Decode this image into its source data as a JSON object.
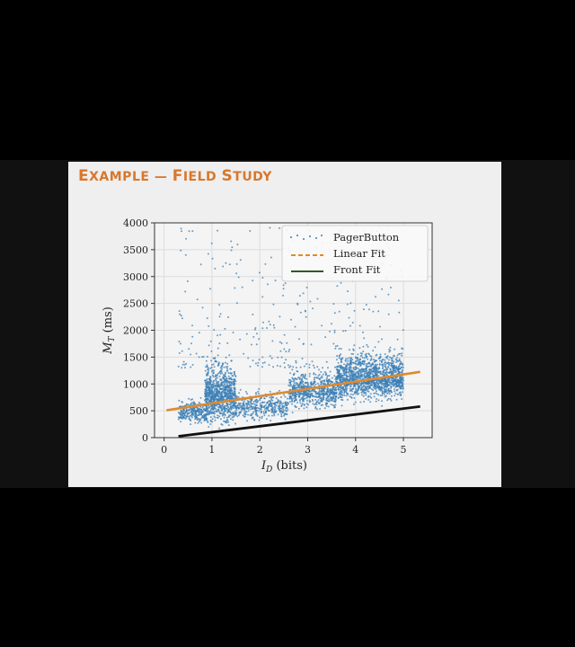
{
  "slide": {
    "title": "Example — Field Study"
  },
  "colors": {
    "accent": "#d9772b",
    "scatter": "#3b7fb5",
    "linear_fit": "#e08a2c",
    "front_fit": "#111111"
  },
  "chart_data": {
    "type": "scatter",
    "title": "",
    "xlabel": "I_D (bits)",
    "ylabel": "M_T (ms)",
    "xlim": [
      -0.2,
      5.6
    ],
    "ylim": [
      0,
      4000
    ],
    "x_ticks": [
      "0",
      "1",
      "2",
      "3",
      "4",
      "5"
    ],
    "y_ticks": [
      "0",
      "500",
      "1000",
      "1500",
      "2000",
      "2500",
      "3000",
      "3500",
      "4000"
    ],
    "grid": true,
    "legend": "top-right",
    "series": [
      {
        "name": "PagerButton",
        "kind": "scatter",
        "clusters": [
          {
            "x_range": [
              0.3,
              0.9
            ],
            "y_center": 420,
            "y_spread": 220,
            "count": 260
          },
          {
            "x_range": [
              0.85,
              1.5
            ],
            "y_center": 650,
            "y_spread": 520,
            "count": 900
          },
          {
            "x_range": [
              1.5,
              2.6
            ],
            "y_center": 520,
            "y_spread": 250,
            "count": 380
          },
          {
            "x_range": [
              2.6,
              3.6
            ],
            "y_center": 780,
            "y_spread": 330,
            "count": 650
          },
          {
            "x_range": [
              3.6,
              5.0
            ],
            "y_center": 1000,
            "y_spread": 430,
            "count": 1400
          }
        ],
        "outliers": {
          "x_range": [
            0.3,
            5.0
          ],
          "y_range": [
            1300,
            3950
          ],
          "count": 320
        }
      },
      {
        "name": "Linear Fit",
        "kind": "line",
        "style": "dashed",
        "x": [
          0.05,
          5.35
        ],
        "y": [
          510,
          1225
        ]
      },
      {
        "name": "Front Fit",
        "kind": "line",
        "style": "solid",
        "x": [
          0.3,
          5.35
        ],
        "y": [
          25,
          580
        ]
      }
    ]
  }
}
